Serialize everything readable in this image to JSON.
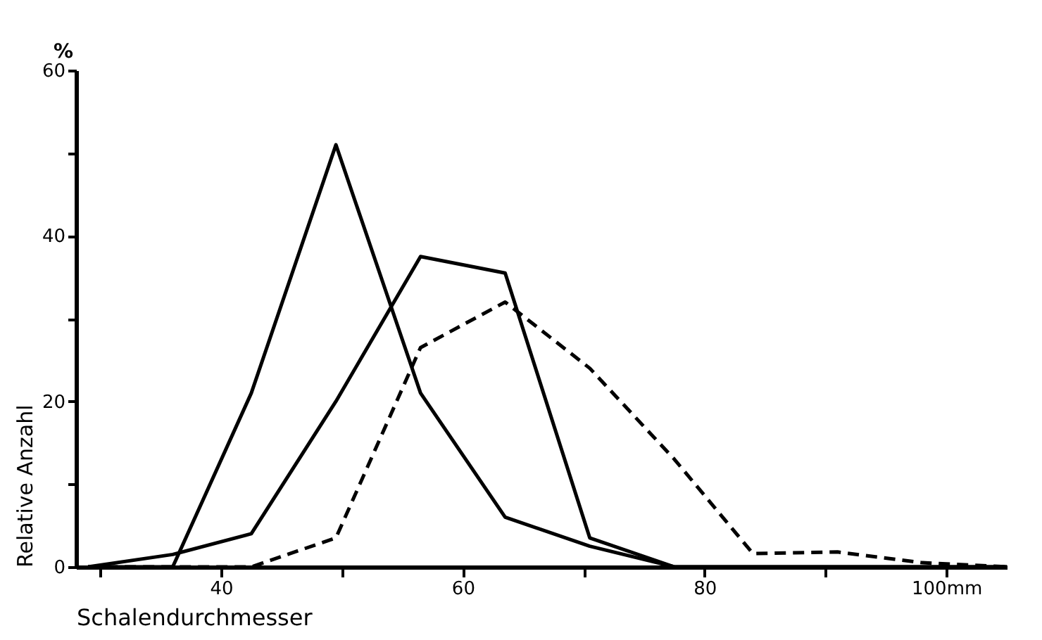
{
  "chart_data": {
    "type": "line",
    "xlabel": "Schalendurchmesser",
    "ylabel": "Relative Anzahl",
    "annotations": [
      "%"
    ],
    "xlim": [
      28,
      105
    ],
    "ylim": [
      0,
      60
    ],
    "xticks": [
      {
        "value": 30,
        "label": null
      },
      40,
      {
        "value": 50,
        "label": null
      },
      60,
      {
        "value": 70,
        "label": null
      },
      80,
      {
        "value": 90,
        "label": null
      },
      {
        "value": 100,
        "label": "100mm"
      }
    ],
    "yticks": [
      0,
      {
        "value": 10,
        "label": null
      },
      20,
      {
        "value": 30,
        "label": null
      },
      40,
      {
        "value": 50,
        "label": null
      },
      60
    ],
    "grid": false,
    "marker": "none",
    "series": [
      {
        "color": "#000000",
        "line_style": "solid",
        "x": [
          29,
          36,
          42.5,
          49.5,
          56.5,
          63.5,
          70.5,
          77.5,
          105
        ],
        "values": [
          0,
          0,
          21,
          51,
          21,
          6,
          2.5,
          0,
          0
        ]
      },
      {
        "color": "#000000",
        "line_style": "solid",
        "x": [
          29,
          36,
          42.5,
          49.5,
          56.5,
          63.5,
          70.5,
          77.5,
          105
        ],
        "values": [
          0,
          1.5,
          4,
          20,
          37.5,
          35.5,
          3.5,
          0,
          0
        ]
      },
      {
        "color": "#000000",
        "line_style": "dashed",
        "x": [
          29,
          36,
          42.5,
          49.5,
          56.5,
          63.5,
          70.5,
          77.5,
          84,
          91,
          98,
          105
        ],
        "values": [
          0,
          0,
          0,
          3.5,
          26.5,
          32,
          24,
          13,
          1.6,
          1.8,
          0.5,
          0
        ]
      }
    ]
  }
}
